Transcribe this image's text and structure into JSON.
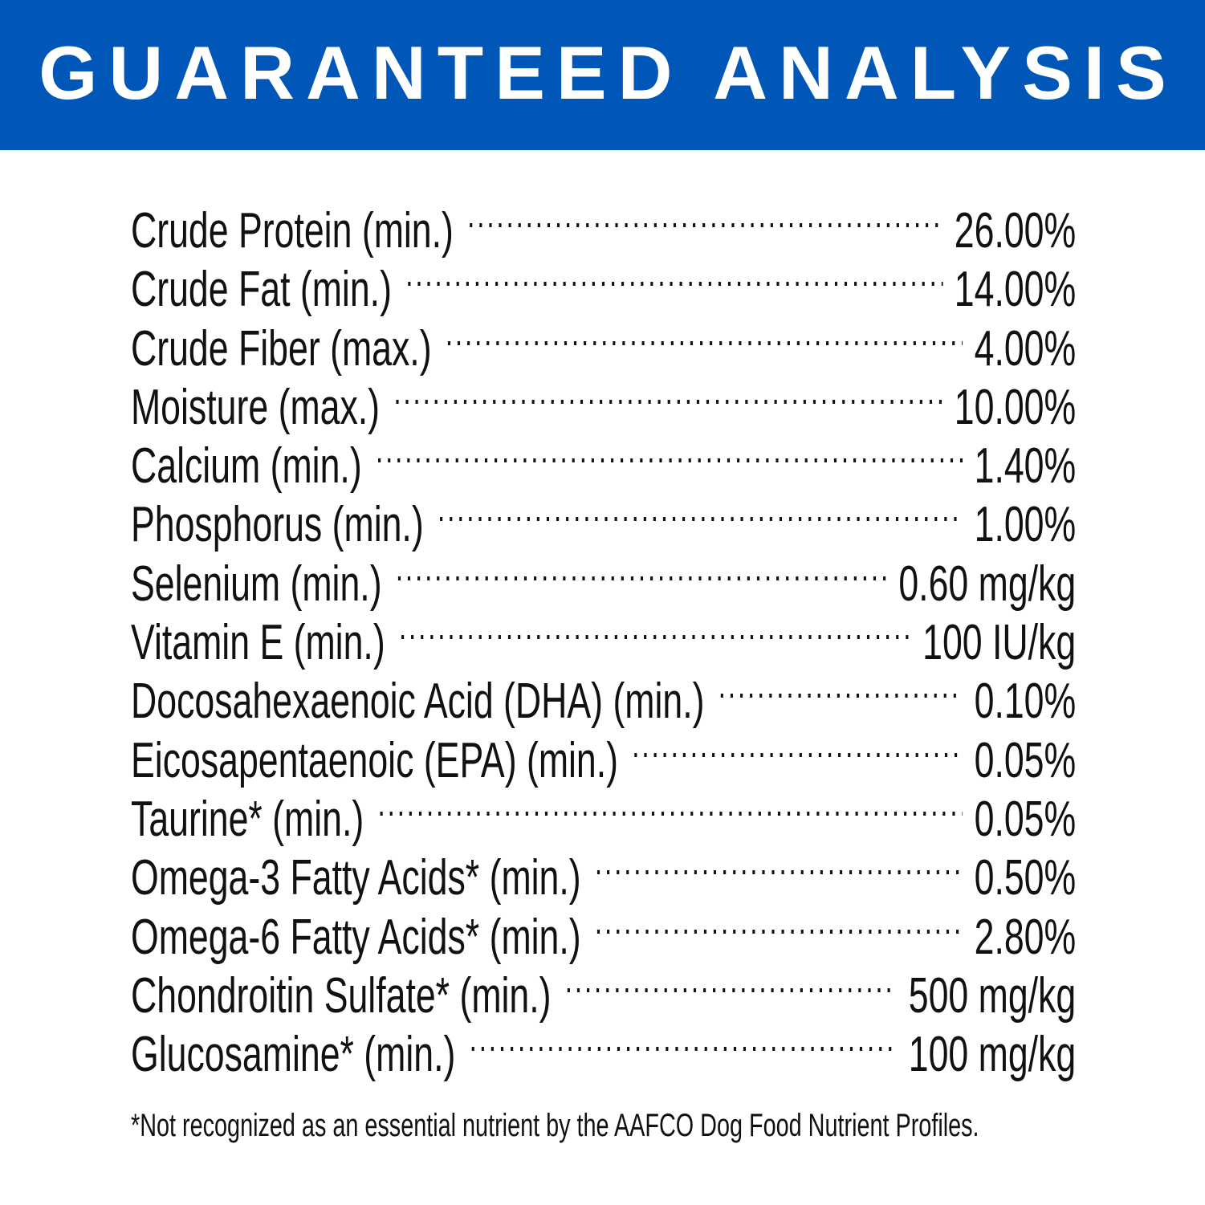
{
  "header": {
    "title": "GUARANTEED ANALYSIS",
    "background_color": "#0057b8"
  },
  "rows": [
    {
      "label": "Crude Protein (min.)",
      "value": "26.00%"
    },
    {
      "label": "Crude Fat (min.)",
      "value": "14.00%"
    },
    {
      "label": "Crude Fiber (max.)",
      "value": "4.00%"
    },
    {
      "label": "Moisture (max.)",
      "value": "10.00%"
    },
    {
      "label": "Calcium (min.)",
      "value": "1.40%"
    },
    {
      "label": "Phosphorus (min.)",
      "value": "1.00%"
    },
    {
      "label": "Selenium (min.)",
      "value": "0.60 mg/kg"
    },
    {
      "label": "Vitamin E (min.)",
      "value": "100 IU/kg"
    },
    {
      "label": "Docosahexaenoic Acid (DHA) (min.)",
      "value": "0.10%"
    },
    {
      "label": "Eicosapentaenoic (EPA) (min.)",
      "value": "0.05%"
    },
    {
      "label": "Taurine* (min.)",
      "value": "0.05%"
    },
    {
      "label": "Omega-3 Fatty Acids* (min.)",
      "value": "0.50%"
    },
    {
      "label": "Omega-6 Fatty Acids* (min.)",
      "value": "2.80%"
    },
    {
      "label": "Chondroitin Sulfate* (min.)",
      "value": "500 mg/kg"
    },
    {
      "label": "Glucosamine* (min.)",
      "value": "100 mg/kg"
    }
  ],
  "footnote": "*Not recognized as an essential nutrient by the AAFCO Dog Food Nutrient Profiles."
}
